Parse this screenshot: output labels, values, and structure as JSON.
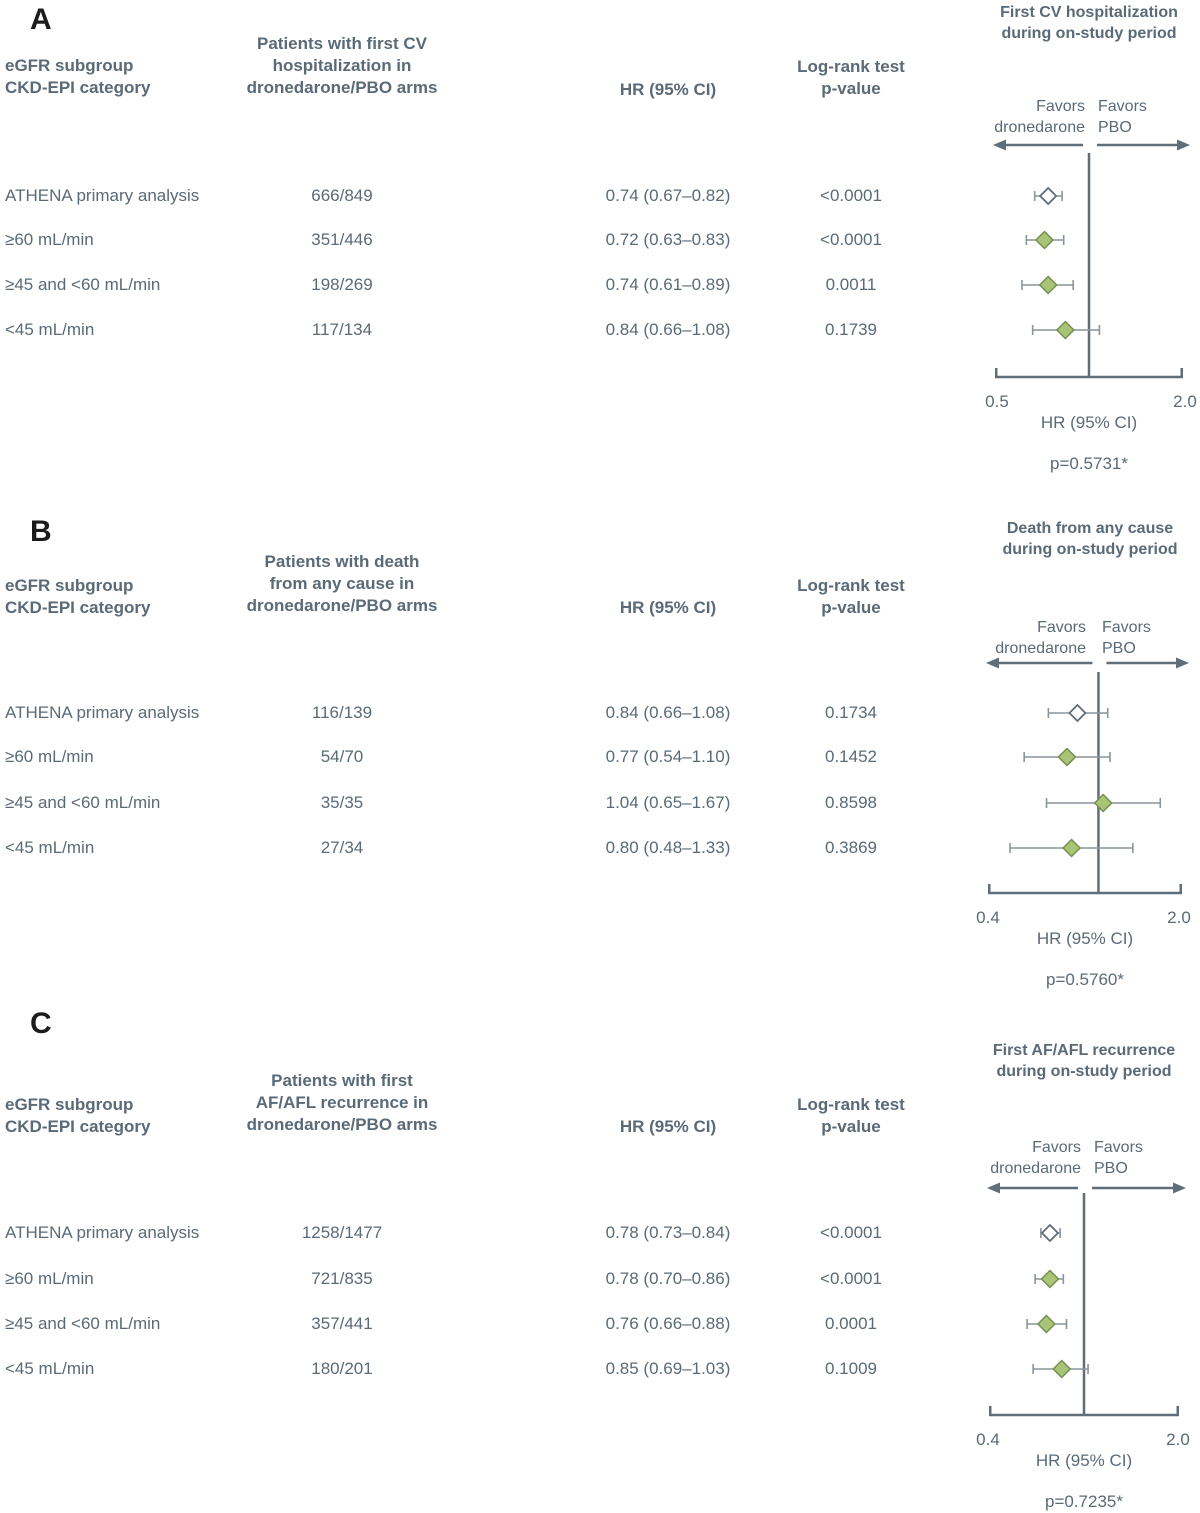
{
  "colors": {
    "text": "#5a6a77",
    "line": "#5f6e79",
    "whisker": "#8a949b",
    "diamond_fill": "#a9c377",
    "diamond_edge": "#74904e",
    "open_diamond_fill": "#ffffff"
  },
  "chart_data": [
    {
      "type": "forest",
      "panel": "A",
      "title": [
        "First CV hospitalization",
        "during on-study period"
      ],
      "columns": {
        "subgroup": [
          "eGFR subgroup",
          "CKD-EPI category"
        ],
        "patients": [
          "Patients with first CV",
          "hospitalization in",
          "dronedarone/PBO arms"
        ],
        "hr": "HR (95% CI)",
        "p": [
          "Log-rank test",
          "p-value"
        ]
      },
      "favors_left": [
        "Favors",
        "dronedarone"
      ],
      "favors_right": [
        "Favors",
        "PBO"
      ],
      "rows": [
        {
          "label": "ATHENA primary analysis",
          "patients": "666/849",
          "hr_text": "0.74 (0.67–0.82)",
          "p": "<0.0001",
          "hr": 0.74,
          "lo": 0.67,
          "hi": 0.82,
          "marker": "open"
        },
        {
          "label": "≥60 mL/min",
          "patients": "351/446",
          "hr_text": "0.72 (0.63–0.83)",
          "p": "<0.0001",
          "hr": 0.72,
          "lo": 0.63,
          "hi": 0.83,
          "marker": "filled"
        },
        {
          "label": "≥45 and <60 mL/min",
          "patients": "198/269",
          "hr_text": "0.74 (0.61–0.89)",
          "p": "0.0011",
          "hr": 0.74,
          "lo": 0.61,
          "hi": 0.89,
          "marker": "filled"
        },
        {
          "label": "<45 mL/min",
          "patients": "117/134",
          "hr_text": "0.84 (0.66–1.08)",
          "p": "0.1739",
          "hr": 0.84,
          "lo": 0.66,
          "hi": 1.08,
          "marker": "filled"
        }
      ],
      "axis": {
        "scale": "log",
        "ticks": [
          "0.5",
          "2.0"
        ],
        "label": "HR (95% CI)",
        "overall_p": "p=0.5731*",
        "plot_min": 0.5,
        "plot_max": 2.0
      }
    },
    {
      "type": "forest",
      "panel": "B",
      "title": [
        "Death from any cause",
        "during on-study period"
      ],
      "columns": {
        "subgroup": [
          "eGFR subgroup",
          "CKD-EPI category"
        ],
        "patients": [
          "Patients with death",
          "from any cause in",
          "dronedarone/PBO arms"
        ],
        "hr": "HR (95% CI)",
        "p": [
          "Log-rank test",
          "p-value"
        ]
      },
      "favors_left": [
        "Favors",
        "dronedarone"
      ],
      "favors_right": [
        "Favors",
        "PBO"
      ],
      "rows": [
        {
          "label": "ATHENA primary analysis",
          "patients": "116/139",
          "hr_text": "0.84 (0.66–1.08)",
          "p": "0.1734",
          "hr": 0.84,
          "lo": 0.66,
          "hi": 1.08,
          "marker": "open"
        },
        {
          "label": "≥60 mL/min",
          "patients": "54/70",
          "hr_text": "0.77 (0.54–1.10)",
          "p": "0.1452",
          "hr": 0.77,
          "lo": 0.54,
          "hi": 1.1,
          "marker": "filled"
        },
        {
          "label": "≥45 and <60 mL/min",
          "patients": "35/35",
          "hr_text": "1.04 (0.65–1.67)",
          "p": "0.8598",
          "hr": 1.04,
          "lo": 0.65,
          "hi": 1.67,
          "marker": "filled"
        },
        {
          "label": "<45 mL/min",
          "patients": "27/34",
          "hr_text": "0.80 (0.48–1.33)",
          "p": "0.3869",
          "hr": 0.8,
          "lo": 0.48,
          "hi": 1.33,
          "marker": "filled"
        }
      ],
      "axis": {
        "scale": "log",
        "ticks": [
          "0.4",
          "2.0"
        ],
        "label": "HR (95% CI)",
        "overall_p": "p=0.5760*",
        "plot_min": 0.4,
        "plot_max": 2.0
      }
    },
    {
      "type": "forest",
      "panel": "C",
      "title": [
        "First AF/AFL recurrence",
        "during on-study period"
      ],
      "columns": {
        "subgroup": [
          "eGFR subgroup",
          "CKD-EPI category"
        ],
        "patients": [
          "Patients with first",
          "AF/AFL recurrence in",
          "dronedarone/PBO arms"
        ],
        "hr": "HR (95% CI)",
        "p": [
          "Log-rank test",
          "p-value"
        ]
      },
      "favors_left": [
        "Favors",
        "dronedarone"
      ],
      "favors_right": [
        "Favors",
        "PBO"
      ],
      "rows": [
        {
          "label": "ATHENA primary analysis",
          "patients": "1258/1477",
          "hr_text": "0.78 (0.73–0.84)",
          "p": "<0.0001",
          "hr": 0.78,
          "lo": 0.73,
          "hi": 0.84,
          "marker": "open"
        },
        {
          "label": "≥60 mL/min",
          "patients": "721/835",
          "hr_text": "0.78 (0.70–0.86)",
          "p": "<0.0001",
          "hr": 0.78,
          "lo": 0.7,
          "hi": 0.86,
          "marker": "filled"
        },
        {
          "label": "≥45 and <60 mL/min",
          "patients": "357/441",
          "hr_text": "0.76 (0.66–0.88)",
          "p": "0.0001",
          "hr": 0.76,
          "lo": 0.66,
          "hi": 0.88,
          "marker": "filled"
        },
        {
          "label": "<45 mL/min",
          "patients": "180/201",
          "hr_text": "0.85 (0.69–1.03)",
          "p": "0.1009",
          "hr": 0.85,
          "lo": 0.69,
          "hi": 1.03,
          "marker": "filled"
        }
      ],
      "axis": {
        "scale": "log",
        "ticks": [
          "0.4",
          "2.0"
        ],
        "label": "HR (95% CI)",
        "overall_p": "p=0.7235*",
        "plot_min": 0.5,
        "plot_max": 2.0
      }
    }
  ]
}
